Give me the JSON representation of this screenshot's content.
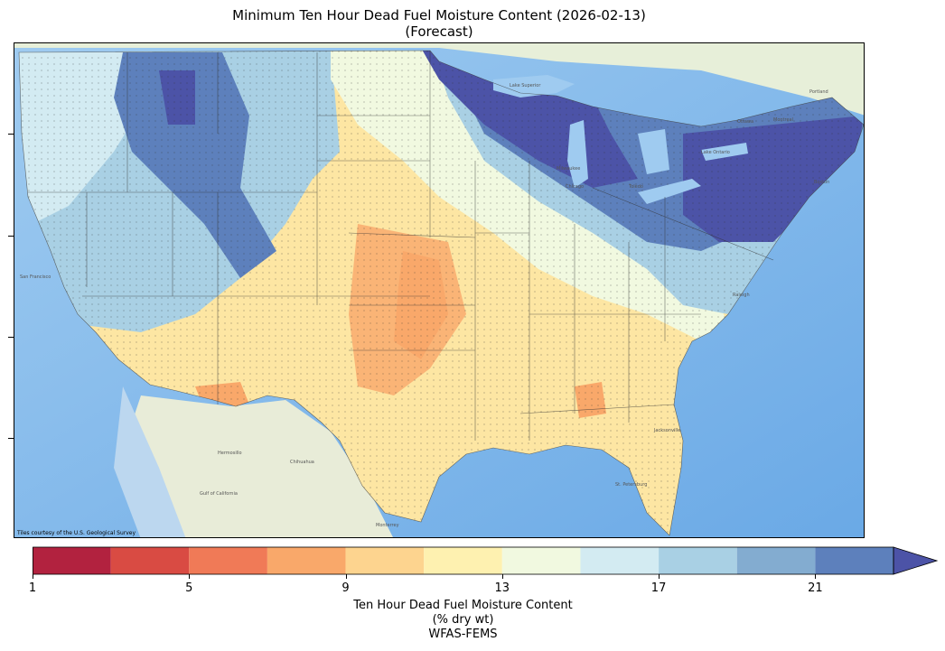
{
  "title": {
    "line1": "Minimum Ten Hour Dead Fuel Moisture Content (2026-02-13)",
    "line2": "(Forecast)"
  },
  "map": {
    "credit": "Tiles courtesy of the U.S. Geological Survey",
    "city_labels": [
      "Hermosillo",
      "Chihuahua",
      "Monterrey",
      "Gulf of California",
      "San Francisco",
      "Jacksonville",
      "St. Petersburg",
      "Raleigh",
      "Toledo",
      "Ottawa",
      "Montreal",
      "Portland",
      "Boston",
      "Milwaukee",
      "Chicago",
      "Lake Superior",
      "Lake Ontario"
    ]
  },
  "colorbar": {
    "bins": [
      {
        "from": 1,
        "to": 3,
        "color": "#b2223f"
      },
      {
        "from": 3,
        "to": 5,
        "color": "#d94b43"
      },
      {
        "from": 5,
        "to": 7,
        "color": "#f07a57"
      },
      {
        "from": 7,
        "to": 9,
        "color": "#f9a86a"
      },
      {
        "from": 9,
        "to": 11,
        "color": "#fdd48f"
      },
      {
        "from": 11,
        "to": 13,
        "color": "#fef1b0"
      },
      {
        "from": 13,
        "to": 15,
        "color": "#f1f9e0"
      },
      {
        "from": 15,
        "to": 17,
        "color": "#d3ebf2"
      },
      {
        "from": 17,
        "to": 19,
        "color": "#a9d0e4"
      },
      {
        "from": 19,
        "to": 21,
        "color": "#83acd0"
      },
      {
        "from": 21,
        "to": 23,
        "color": "#5d80bc"
      }
    ],
    "extend_color": "#4c53a7",
    "ticks": [
      "1",
      "5",
      "9",
      "13",
      "17",
      "21"
    ],
    "label_line1": "Ten Hour Dead Fuel Moisture Content",
    "label_line2": "(% dry wt)",
    "label_line3": "WFAS-FEMS"
  }
}
